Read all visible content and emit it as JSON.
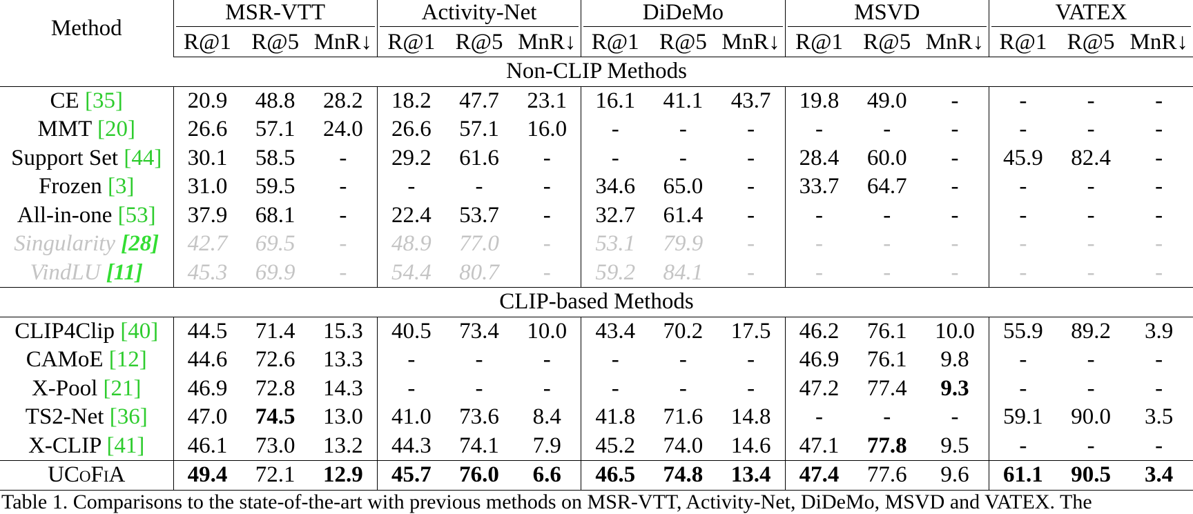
{
  "table": {
    "method_header": "Method",
    "groups": [
      "MSR-VTT",
      "Activity-Net",
      "DiDeMo",
      "MSVD",
      "VATEX"
    ],
    "metrics": [
      "R@1",
      "R@5",
      "MnR↓",
      "R@1",
      "R@5",
      "MnR↓",
      "R@1",
      "R@5",
      "MnR↓",
      "R@1",
      "R@5",
      "MnR↓",
      "R@1",
      "R@5",
      "MnR↓"
    ],
    "sections": [
      {
        "title": "Non-CLIP Methods",
        "rows": [
          {
            "method": "CE",
            "ref": "[35]",
            "values": [
              "20.9",
              "48.8",
              "28.2",
              "18.2",
              "47.7",
              "23.1",
              "16.1",
              "41.1",
              "43.7",
              "19.8",
              "49.0",
              "-",
              "-",
              "-",
              "-"
            ]
          },
          {
            "method": "MMT",
            "ref": "[20]",
            "values": [
              "26.6",
              "57.1",
              "24.0",
              "26.6",
              "57.1",
              "16.0",
              "-",
              "-",
              "-",
              "-",
              "-",
              "-",
              "-",
              "-",
              "-"
            ]
          },
          {
            "method": "Support Set",
            "ref": "[44]",
            "values": [
              "30.1",
              "58.5",
              "-",
              "29.2",
              "61.6",
              "-",
              "-",
              "-",
              "-",
              "28.4",
              "60.0",
              "-",
              "45.9",
              "82.4",
              "-"
            ]
          },
          {
            "method": "Frozen",
            "ref": "[3]",
            "values": [
              "31.0",
              "59.5",
              "-",
              "-",
              "-",
              "-",
              "34.6",
              "65.0",
              "-",
              "33.7",
              "64.7",
              "-",
              "-",
              "-",
              "-"
            ]
          },
          {
            "method": "All-in-one",
            "ref": "[53]",
            "values": [
              "37.9",
              "68.1",
              "-",
              "22.4",
              "53.7",
              "-",
              "32.7",
              "61.4",
              "-",
              "-",
              "-",
              "-",
              "-",
              "-",
              "-"
            ]
          },
          {
            "method": "Singularity",
            "ref": "[28]",
            "muted": true,
            "values": [
              "42.7",
              "69.5",
              "-",
              "48.9",
              "77.0",
              "-",
              "53.1",
              "79.9",
              "-",
              "-",
              "-",
              "-",
              "-",
              "-",
              "-"
            ]
          },
          {
            "method": "VindLU",
            "ref": "[11]",
            "muted": true,
            "values": [
              "45.3",
              "69.9",
              "-",
              "54.4",
              "80.7",
              "-",
              "59.2",
              "84.1",
              "-",
              "-",
              "-",
              "-",
              "-",
              "-",
              "-"
            ]
          }
        ]
      },
      {
        "title": "CLIP-based Methods",
        "rows": [
          {
            "method": "CLIP4Clip",
            "ref": "[40]",
            "values": [
              "44.5",
              "71.4",
              "15.3",
              "40.5",
              "73.4",
              "10.0",
              "43.4",
              "70.2",
              "17.5",
              "46.2",
              "76.1",
              "10.0",
              "55.9",
              "89.2",
              "3.9"
            ]
          },
          {
            "method": "CAMoE",
            "ref": "[12]",
            "values": [
              "44.6",
              "72.6",
              "13.3",
              "-",
              "-",
              "-",
              "-",
              "-",
              "-",
              "46.9",
              "76.1",
              "9.8",
              "-",
              "-",
              "-"
            ]
          },
          {
            "method": "X-Pool",
            "ref": "[21]",
            "bold": [
              11
            ],
            "values": [
              "46.9",
              "72.8",
              "14.3",
              "-",
              "-",
              "-",
              "-",
              "-",
              "-",
              "47.2",
              "77.4",
              "9.3",
              "-",
              "-",
              "-"
            ]
          },
          {
            "method": "TS2-Net",
            "ref": "[36]",
            "bold": [
              1
            ],
            "values": [
              "47.0",
              "74.5",
              "13.0",
              "41.0",
              "73.6",
              "8.4",
              "41.8",
              "71.6",
              "14.8",
              "-",
              "-",
              "-",
              "59.1",
              "90.0",
              "3.5"
            ]
          },
          {
            "method": "X-CLIP",
            "ref": "[41]",
            "bold": [
              10
            ],
            "values": [
              "46.1",
              "73.0",
              "13.2",
              "44.3",
              "74.1",
              "7.9",
              "45.2",
              "74.0",
              "14.6",
              "47.1",
              "77.8",
              "9.5",
              "-",
              "-",
              "-"
            ]
          }
        ]
      }
    ],
    "final_row": {
      "method": "UCoFiA",
      "bold": [
        0,
        2,
        3,
        4,
        5,
        6,
        7,
        8,
        9,
        12,
        13,
        14
      ],
      "values": [
        "49.4",
        "72.1",
        "12.9",
        "45.7",
        "76.0",
        "6.6",
        "46.5",
        "74.8",
        "13.4",
        "47.4",
        "77.6",
        "9.6",
        "61.1",
        "90.5",
        "3.4"
      ]
    },
    "caption": "Table 1. Comparisons to the state-of-the-art with previous methods on MSR-VTT, Activity-Net, DiDeMo, MSVD and VATEX. The"
  }
}
